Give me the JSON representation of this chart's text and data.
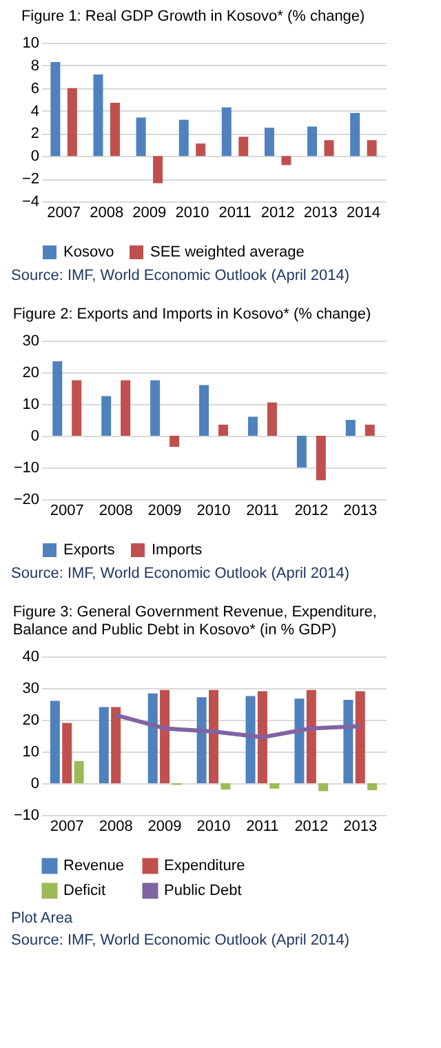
{
  "chart_data": [
    {
      "type": "bar",
      "title": "Figure 1: Real GDP Growth in Kosovo* (% change)",
      "categories": [
        "2007",
        "2008",
        "2009",
        "2010",
        "2011",
        "2012",
        "2013",
        "2014"
      ],
      "series": [
        {
          "name": "Kosovo",
          "color": "#4f81bd",
          "values": [
            8.3,
            7.2,
            3.4,
            3.2,
            4.3,
            2.5,
            2.6,
            3.8
          ]
        },
        {
          "name": "SEE weighted average",
          "color": "#c0504d",
          "values": [
            6.0,
            4.7,
            -2.4,
            1.1,
            1.7,
            -0.8,
            1.4,
            1.4
          ]
        }
      ],
      "ylim": [
        -4,
        10
      ],
      "yticks": [
        -4,
        -2,
        0,
        2,
        4,
        6,
        8,
        10
      ],
      "grid": "y",
      "legend": "bottom",
      "annotations": [
        "Source: IMF, World Economic Outlook (April 2014)"
      ]
    },
    {
      "type": "bar",
      "title": "Figure 2: Exports and Imports in Kosovo*  (% change)",
      "categories": [
        "2007",
        "2008",
        "2009",
        "2010",
        "2011",
        "2012",
        "2013"
      ],
      "series": [
        {
          "name": "Exports",
          "color": "#4f81bd",
          "values": [
            23.5,
            12.5,
            17.5,
            16,
            6,
            -10,
            5
          ]
        },
        {
          "name": "Imports",
          "color": "#c0504d",
          "values": [
            17.5,
            17.5,
            -3.5,
            3.5,
            10.5,
            -14,
            3.5
          ]
        }
      ],
      "ylim": [
        -20,
        30
      ],
      "yticks": [
        -20,
        -10,
        0,
        10,
        20,
        30
      ],
      "grid": "y",
      "legend": "bottom",
      "annotations": [
        "Source: IMF, World Economic Outlook (April 2014)"
      ]
    },
    {
      "type": "bar",
      "title": "Figure 3: General Government Revenue, Expenditure, Balance and Public Debt in Kosovo* (in % GDP)",
      "categories": [
        "2007",
        "2008",
        "2009",
        "2010",
        "2011",
        "2012",
        "2013"
      ],
      "series": [
        {
          "name": "Revenue",
          "color": "#4f81bd",
          "values": [
            26,
            24,
            28.3,
            27.1,
            27.5,
            26.7,
            26.3
          ]
        },
        {
          "name": "Expenditure",
          "color": "#c0504d",
          "values": [
            19,
            24,
            29.4,
            29.4,
            29,
            29.4,
            29
          ]
        },
        {
          "name": "Deficit",
          "color": "#9bbb59",
          "values": [
            7,
            0,
            -0.5,
            -2,
            -1.7,
            -2.5,
            -2.2
          ]
        },
        {
          "name": "Public Debt",
          "color": "#8064a2",
          "type": "line",
          "values": [
            null,
            21.5,
            17.3,
            16.3,
            14.5,
            17.3,
            18
          ]
        }
      ],
      "ylim": [
        -10,
        40
      ],
      "yticks": [
        -10,
        0,
        10,
        20,
        30,
        40
      ],
      "grid": "y",
      "legend": "bottom",
      "annotations": [
        "Plot Area",
        "Source: IMF, World Economic Outlook (April 2014)"
      ]
    }
  ]
}
